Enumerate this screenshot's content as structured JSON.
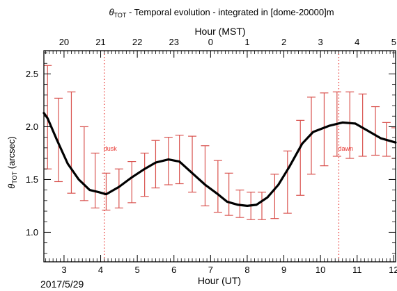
{
  "chart_data": {
    "type": "line",
    "title_symbol": "θ",
    "title_subscript": "TOT",
    "title_rest": " - Temporal evolution - integrated in [dome-20000]m",
    "xlabel": "Hour (UT)",
    "x2label": "Hour (MST)",
    "ylabel_symbol": "θ",
    "ylabel_subscript": "TOT",
    "ylabel_rest": " (arcsec)",
    "date_label": "2017/5/29",
    "xlim": [
      2.45,
      12.05
    ],
    "ylim": [
      0.72,
      2.72
    ],
    "x_ticks": [
      3,
      4,
      5,
      6,
      7,
      8,
      9,
      10,
      11,
      12
    ],
    "x_ticklabels": [
      "3",
      "4",
      "5",
      "6",
      "7",
      "8",
      "9",
      "10",
      "11",
      "12"
    ],
    "x2_ticks": [
      3,
      4,
      5,
      6,
      7,
      8,
      9,
      10,
      11,
      12
    ],
    "x2_ticklabels": [
      "20",
      "21",
      "22",
      "23",
      "0",
      "1",
      "2",
      "3",
      "4",
      "5"
    ],
    "y_ticks": [
      1.0,
      1.5,
      2.0,
      2.5
    ],
    "y_ticklabels": [
      "1.0",
      "1.5",
      "2.0",
      "2.5"
    ],
    "grid": false,
    "series": [
      {
        "color": "#000000",
        "x": [
          2.45,
          2.55,
          2.8,
          3.1,
          3.4,
          3.7,
          3.95,
          4.15,
          4.5,
          4.85,
          5.2,
          5.5,
          5.85,
          6.15,
          6.5,
          6.85,
          7.2,
          7.45,
          7.75,
          8.0,
          8.25,
          8.55,
          8.85,
          9.15,
          9.5,
          9.8,
          10.25,
          10.6,
          10.95,
          11.3,
          11.65,
          12.05
        ],
        "y": [
          2.13,
          2.08,
          1.88,
          1.65,
          1.5,
          1.4,
          1.38,
          1.36,
          1.43,
          1.52,
          1.6,
          1.66,
          1.69,
          1.67,
          1.56,
          1.45,
          1.36,
          1.29,
          1.26,
          1.25,
          1.26,
          1.33,
          1.45,
          1.62,
          1.84,
          1.95,
          2.01,
          2.04,
          2.03,
          1.96,
          1.89,
          1.85
        ]
      }
    ],
    "error_bars": {
      "color": "#d9534f",
      "x": [
        2.55,
        2.85,
        3.2,
        3.55,
        3.85,
        4.15,
        4.5,
        4.85,
        5.2,
        5.5,
        5.85,
        6.15,
        6.5,
        6.85,
        7.2,
        7.5,
        7.8,
        8.1,
        8.4,
        8.75,
        9.1,
        9.45,
        9.75,
        10.1,
        10.45,
        10.8,
        11.15,
        11.5,
        11.8,
        12.05
      ],
      "low": [
        1.6,
        1.48,
        1.37,
        1.3,
        1.23,
        1.21,
        1.23,
        1.28,
        1.34,
        1.42,
        1.45,
        1.46,
        1.38,
        1.25,
        1.19,
        1.16,
        1.14,
        1.12,
        1.12,
        1.13,
        1.18,
        1.35,
        1.55,
        1.63,
        1.72,
        1.7,
        1.72,
        1.73,
        1.72,
        1.7
      ],
      "high": [
        2.58,
        2.27,
        2.33,
        2.0,
        1.75,
        1.56,
        1.6,
        1.67,
        1.75,
        1.87,
        1.9,
        1.92,
        1.91,
        1.82,
        1.68,
        1.56,
        1.4,
        1.38,
        1.38,
        1.55,
        1.77,
        2.06,
        2.28,
        2.32,
        2.33,
        2.33,
        2.31,
        2.19,
        2.04,
        1.99
      ]
    },
    "vlines": [
      {
        "x": 4.1,
        "label": "dusk",
        "label_y": 1.8,
        "color": "#e8312c"
      },
      {
        "x": 10.5,
        "label": "dawn",
        "label_y": 1.8,
        "color": "#e8312c"
      }
    ]
  }
}
